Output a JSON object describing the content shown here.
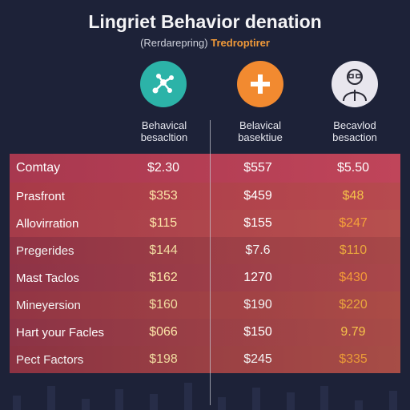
{
  "header": {
    "title": "Lingriet Behavior denation",
    "subtitle_prefix": "(Rerdarepring)",
    "subtitle_accent": "Tredroptirer"
  },
  "columns": [
    {
      "icon": "network-icon",
      "color": "#2cb3a8",
      "label_line1": "Behavical",
      "label_line2": "besacltion"
    },
    {
      "icon": "plus-icon",
      "color": "#f28a30",
      "label_line1": "Belavical",
      "label_line2": "basektiue"
    },
    {
      "icon": "person-icon",
      "color": "#e8e6ee",
      "label_line1": "Becavlod",
      "label_line2": "besaction"
    }
  ],
  "rows": [
    {
      "label": "Comtay",
      "v1": "$2.30",
      "v2": "$557",
      "v3": "$5.50",
      "v3_color": "#ffffff"
    },
    {
      "label": "Prasfront",
      "v1": "$353",
      "v2": "$459",
      "v3": "$48",
      "v3_color": "#f6c34a"
    },
    {
      "label": "Allovirration",
      "v1": "$115",
      "v2": "$155",
      "v3": "$247",
      "v3_color": "#f6a23a"
    },
    {
      "label": "Pregerides",
      "v1": "$144",
      "v2": "$7.6",
      "v3": "$110",
      "v3_color": "#f6b040"
    },
    {
      "label": "Mast Taclos",
      "v1": "$162",
      "v2": "1270",
      "v3": "$430",
      "v3_color": "#f49a38"
    },
    {
      "label": "Mineyersion",
      "v1": "$160",
      "v2": "$190",
      "v3": "$220",
      "v3_color": "#f6b040"
    },
    {
      "label": "Hart your Facles",
      "v1": "$066",
      "v2": "$150",
      "v3": "9.79",
      "v3_color": "#f6c34a"
    },
    {
      "label": "Pect Factors",
      "v1": "$198",
      "v2": "$245",
      "v3": "$335",
      "v3_color": "#f6a23a"
    }
  ],
  "v1_color": "#fde6a8"
}
